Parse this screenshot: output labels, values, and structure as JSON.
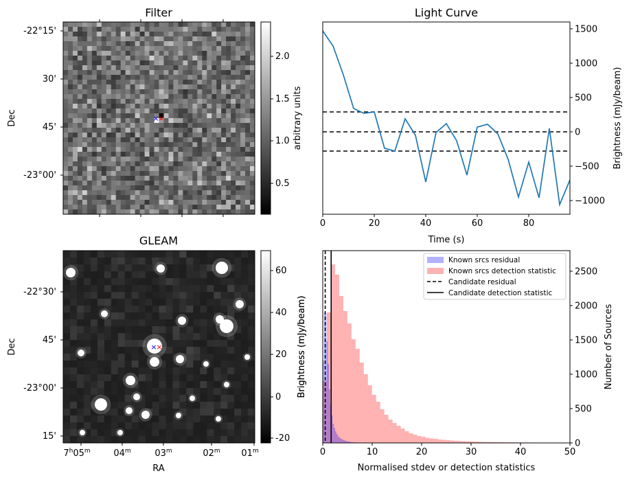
{
  "panels": {
    "filter": {
      "title": "Filter",
      "ylabel": "Dec",
      "colorbar_label": "arbitrary units",
      "dec_ticks": [
        "-22°15'",
        "30'",
        "45'",
        "-23°00'"
      ],
      "colorbar_ticks": [
        "0.5",
        "1.0",
        "1.5",
        "2.0"
      ]
    },
    "gleam": {
      "title": "GLEAM",
      "ylabel": "Dec",
      "xlabel": "RA",
      "colorbar_label": "Brightness (mJy/beam)",
      "dec_ticks": [
        "-22°30'",
        "45'",
        "-23°00'",
        "15'"
      ],
      "ra_ticks": [
        {
          "main": "7",
          "h": "h",
          "mm": "05",
          "m": "m"
        },
        {
          "main": "04",
          "m": "m"
        },
        {
          "main": "03",
          "m": "m"
        },
        {
          "main": "02",
          "m": "m"
        },
        {
          "main": "01",
          "m": "m"
        }
      ],
      "colorbar_ticks": [
        "-20",
        "0",
        "20",
        "40",
        "60"
      ]
    },
    "colors": {
      "line": "#1f77b4",
      "known_residual": "#0000ff",
      "known_detection": "#ff0000",
      "marker_candidate": "#0000ff",
      "marker_known": "#ff0000"
    }
  },
  "chart_data": [
    {
      "type": "line",
      "title": "Light Curve",
      "xlabel": "Time (s)",
      "ylabel": "Brightness (mJy/beam)",
      "xlim": [
        0,
        96
      ],
      "ylim": [
        -1200,
        1600
      ],
      "xticks": [
        0,
        20,
        40,
        60,
        80
      ],
      "yticks": [
        -1000,
        -500,
        0,
        500,
        1000,
        1500
      ],
      "x": [
        0,
        4,
        8,
        12,
        16,
        20,
        24,
        28,
        32,
        36,
        40,
        44,
        48,
        52,
        56,
        60,
        64,
        68,
        72,
        76,
        80,
        84,
        88,
        92,
        96
      ],
      "y": [
        1470,
        1250,
        830,
        340,
        270,
        290,
        -240,
        -280,
        190,
        -50,
        -730,
        -10,
        120,
        -130,
        -630,
        70,
        110,
        -30,
        -400,
        -950,
        -440,
        -960,
        50,
        -1060,
        -700
      ],
      "hlines": [
        {
          "y": 290,
          "style": "dashed"
        },
        {
          "y": 0,
          "style": "dashed"
        },
        {
          "y": -280,
          "style": "dashed"
        }
      ]
    },
    {
      "type": "histogram",
      "xlabel": "Normalised stdev or detection statistics",
      "ylabel_left": "Brightness (mJy/beam)",
      "ylabel_right": "Number of Sources",
      "xlim": [
        0,
        50
      ],
      "ylim": [
        0,
        2800
      ],
      "xticks": [
        0,
        10,
        20,
        30,
        40,
        50
      ],
      "yticks": [
        0,
        500,
        1000,
        1500,
        2000,
        2500
      ],
      "legend_position": "top-right",
      "series": [
        {
          "name": "Known srcs residual",
          "bin_width": 0.25,
          "bin_start": 0,
          "values": [
            1200,
            1900,
            1880,
            1480,
            1150,
            780,
            560,
            400,
            280,
            220,
            170,
            130,
            100,
            80,
            65,
            55,
            45,
            38,
            32,
            26,
            22,
            18,
            15,
            12,
            10,
            8,
            7,
            6,
            5,
            4,
            3,
            3,
            2,
            2,
            2,
            1,
            1,
            1,
            1,
            1
          ]
        },
        {
          "name": "Known srcs detection statistic",
          "bin_width": 0.83,
          "bin_start": 0,
          "values": [
            900,
            1900,
            2600,
            2450,
            2140,
            1920,
            1740,
            1510,
            1370,
            1170,
            1000,
            840,
            700,
            600,
            490,
            410,
            340,
            290,
            250,
            210,
            170,
            140,
            120,
            100,
            90,
            75,
            65,
            60,
            50,
            45,
            40,
            35,
            32,
            28,
            25,
            22,
            20,
            18,
            16,
            14,
            13,
            12,
            11,
            10,
            9,
            8,
            8,
            7,
            7,
            6,
            6,
            5,
            5,
            5,
            4,
            4,
            4,
            3,
            3,
            3
          ]
        }
      ],
      "vlines": [
        {
          "name": "Candidate residual",
          "x": 0.5,
          "style": "dashed"
        },
        {
          "name": "Candidate detection statistic",
          "x": 1.7,
          "style": "solid"
        }
      ]
    }
  ]
}
